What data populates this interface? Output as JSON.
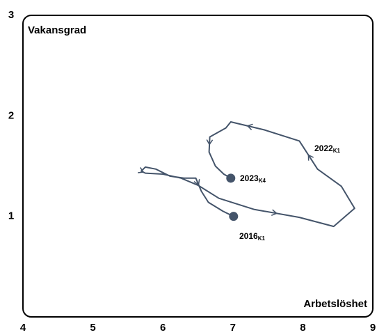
{
  "chart_data": {
    "type": "line",
    "y_label": "Vakansgrad",
    "x_label": "Arbetslöshet",
    "x": [
      7.01,
      6.86,
      6.65,
      6.55,
      6.47,
      6.3,
      6.1,
      5.9,
      5.75,
      5.69,
      5.75,
      6.0,
      6.26,
      6.5,
      6.8,
      7.3,
      7.95,
      8.44,
      8.74,
      8.55,
      8.21,
      7.95,
      7.45,
      6.97,
      6.9,
      6.67,
      6.66,
      6.75,
      6.87,
      6.97
    ],
    "values": [
      1.0,
      1.05,
      1.14,
      1.25,
      1.38,
      1.38,
      1.4,
      1.47,
      1.49,
      1.45,
      1.43,
      1.42,
      1.38,
      1.31,
      1.18,
      1.07,
      0.99,
      0.9,
      1.08,
      1.3,
      1.47,
      1.75,
      1.86,
      1.94,
      1.88,
      1.79,
      1.64,
      1.5,
      1.42,
      1.38
    ],
    "color": "#44546a",
    "xlim": [
      4,
      9
    ],
    "ylim": [
      0,
      3
    ],
    "xticks": [
      4,
      5,
      6,
      7,
      8,
      9
    ],
    "yticks": [
      1,
      2,
      3
    ],
    "annotations": [
      {
        "text": "2016",
        "sub": "K1"
      },
      {
        "text": "2022",
        "sub": "K1"
      },
      {
        "text": "2023",
        "sub": "K4"
      }
    ]
  }
}
